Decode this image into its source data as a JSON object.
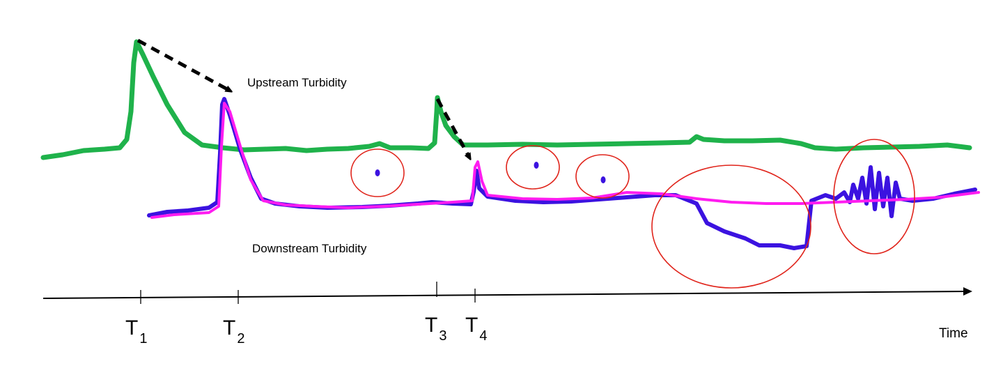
{
  "labels": {
    "upstream": "Upstream Turbidity",
    "downstream": "Downstream Turbidity",
    "time_axis": "Time"
  },
  "time_markers": [
    {
      "base": "T",
      "sub": "1"
    },
    {
      "base": "T",
      "sub": "2"
    },
    {
      "base": "T",
      "sub": "3"
    },
    {
      "base": "T",
      "sub": "4"
    }
  ],
  "colors": {
    "upstream": "#1fb24b",
    "downstream_measured": "#3b12e0",
    "downstream_predicted": "#ff1cf0",
    "anomaly_marker": "#e0241b",
    "arrow": "#000000"
  }
}
